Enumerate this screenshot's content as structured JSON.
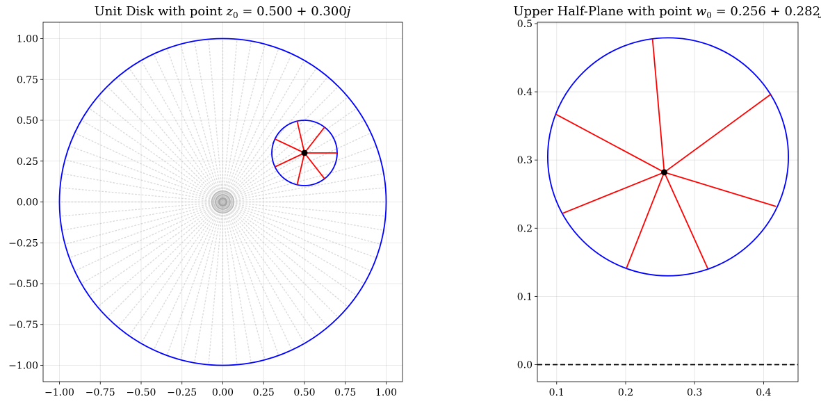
{
  "chart_data": [
    {
      "type": "scatter",
      "title": {
        "prefix": "Unit Disk with point ",
        "variable": "z",
        "subscript": "0",
        "rest": " = 0.500 + 0.300",
        "unit": "j"
      },
      "xlabel": "",
      "ylabel": "",
      "xlim": [
        -1.1,
        1.1
      ],
      "ylim": [
        -1.1,
        1.1
      ],
      "grid": true,
      "xticks": [
        -1.0,
        -0.75,
        -0.5,
        -0.25,
        0.0,
        0.25,
        0.5,
        0.75,
        1.0
      ],
      "yticks": [
        -1.0,
        -0.75,
        -0.5,
        -0.25,
        0.0,
        0.25,
        0.5,
        0.75,
        1.0
      ],
      "xtick_labels": [
        "−1.00",
        "−0.75",
        "−0.50",
        "−0.25",
        "0.00",
        "0.25",
        "0.50",
        "0.75",
        "1.00"
      ],
      "ytick_labels": [
        "−1.00",
        "−0.75",
        "−0.50",
        "−0.25",
        "0.00",
        "0.25",
        "0.50",
        "0.75",
        "1.00"
      ],
      "background_grid": {
        "num_rays": 72,
        "num_radii": 50,
        "color": "#999999"
      },
      "unit_circle": {
        "center": [
          0,
          0
        ],
        "radius": 1.0,
        "color": "#0000ff"
      },
      "small_circle": {
        "center": [
          0.5,
          0.3
        ],
        "radius": 0.2,
        "color": "#0000ff"
      },
      "point": {
        "x": 0.5,
        "y": 0.3,
        "color": "#000000"
      },
      "segments": {
        "color": "#ff0000",
        "from": [
          0.5,
          0.3
        ],
        "to": [
          [
            0.7,
            0.3
          ],
          [
            0.623,
            0.458
          ],
          [
            0.455,
            0.495
          ],
          [
            0.32,
            0.385
          ],
          [
            0.32,
            0.215
          ],
          [
            0.455,
            0.105
          ],
          [
            0.623,
            0.142
          ]
        ]
      }
    },
    {
      "type": "scatter",
      "title": {
        "prefix": "Upper Half-Plane with point ",
        "variable": "w",
        "subscript": "0",
        "rest": " = 0.256 + 0.282",
        "unit": "j"
      },
      "xlabel": "",
      "ylabel": "",
      "xlim": [
        0.072,
        0.45
      ],
      "ylim": [
        -0.025,
        0.502
      ],
      "grid": true,
      "xticks": [
        0.1,
        0.2,
        0.3,
        0.4
      ],
      "yticks": [
        0.0,
        0.1,
        0.2,
        0.3,
        0.4,
        0.5
      ],
      "xtick_labels": [
        "0.1",
        "0.2",
        "0.3",
        "0.4"
      ],
      "ytick_labels": [
        "0.0",
        "0.1",
        "0.2",
        "0.3",
        "0.4",
        "0.5"
      ],
      "circle": {
        "center": [
          0.2615,
          0.3047
        ],
        "radius": 0.1745,
        "color": "#0000ff"
      },
      "baseline": {
        "y": 0.0,
        "style": "dashed",
        "color": "#000000"
      },
      "point": {
        "x": 0.256,
        "y": 0.282,
        "color": "#000000"
      },
      "segments": {
        "color": "#ff0000",
        "from": [
          0.256,
          0.282
        ],
        "to": [
          [
            0.239,
            0.477
          ],
          [
            0.41,
            0.396
          ],
          [
            0.418,
            0.232
          ],
          [
            0.319,
            0.141
          ],
          [
            0.201,
            0.141
          ],
          [
            0.109,
            0.222
          ],
          [
            0.099,
            0.367
          ]
        ]
      }
    }
  ]
}
